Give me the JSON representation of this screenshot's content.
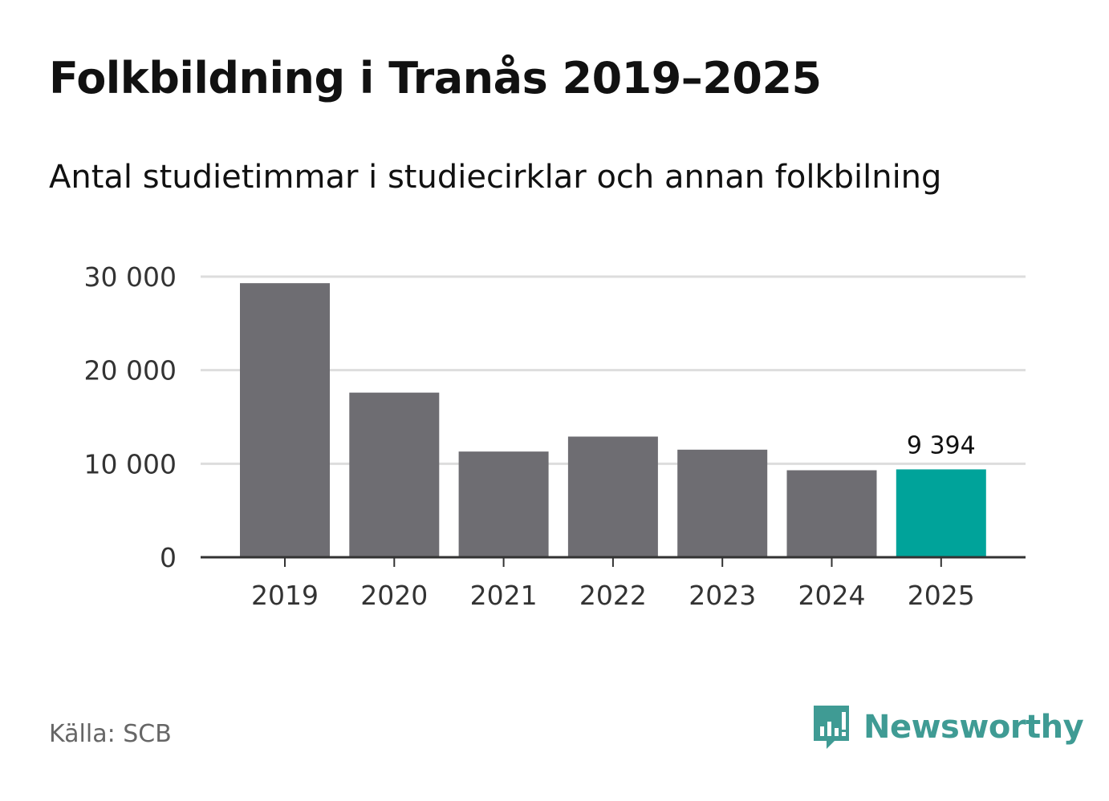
{
  "header": {
    "title": "Folkbildning i Tranås 2019–2025",
    "subtitle": "Antal studietimmar i studiecirklar och annan folkbilning"
  },
  "footer": {
    "source": "Källa: SCB",
    "brand": "Newsworthy",
    "brand_icon": "bar-chart-speech-bubble-icon"
  },
  "colors": {
    "bar": "#6e6d72",
    "highlight": "#00a39a",
    "grid": "#dddddd",
    "axis": "#333333",
    "brand": "#3f9b94"
  },
  "chart_data": {
    "type": "bar",
    "title": "Folkbildning i Tranås 2019–2025",
    "subtitle": "Antal studietimmar i studiecirklar och annan folkbilning",
    "xlabel": "",
    "ylabel": "",
    "categories": [
      "2019",
      "2020",
      "2021",
      "2022",
      "2023",
      "2024",
      "2025"
    ],
    "values": [
      29300,
      17600,
      11300,
      12900,
      11500,
      9300,
      9394
    ],
    "highlight_index": 6,
    "data_labels": [
      {
        "index": 6,
        "text": "9 394"
      }
    ],
    "ylim": [
      0,
      30000
    ],
    "yticks": [
      0,
      10000,
      20000,
      30000
    ],
    "ytick_labels": [
      "0",
      "10 000",
      "20 000",
      "30 000"
    ],
    "grid": true,
    "legend": "none"
  }
}
